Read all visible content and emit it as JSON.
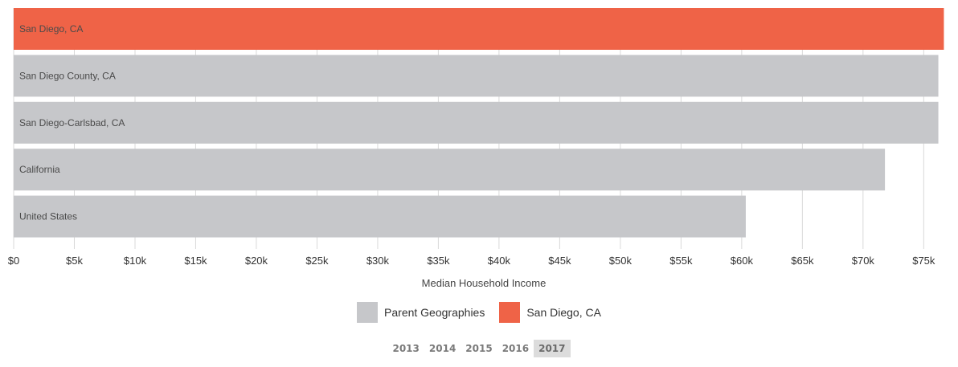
{
  "chart_data": {
    "type": "bar",
    "orientation": "horizontal",
    "categories": [
      "San Diego, CA",
      "San Diego County, CA",
      "San Diego-Carlsbad, CA",
      "California",
      "United States"
    ],
    "values": [
      76662,
      76207,
      76207,
      71805,
      60336
    ],
    "highlight": "San Diego, CA",
    "xlabel": "Median Household Income",
    "xlim": [
      0,
      76700
    ],
    "xticks": [
      0,
      5000,
      10000,
      15000,
      20000,
      25000,
      30000,
      35000,
      40000,
      45000,
      50000,
      55000,
      60000,
      65000,
      70000,
      75000
    ],
    "xtick_labels": [
      "$0",
      "$5k",
      "$10k",
      "$15k",
      "$20k",
      "$25k",
      "$30k",
      "$35k",
      "$40k",
      "$45k",
      "$50k",
      "$55k",
      "$60k",
      "$65k",
      "$70k",
      "$75k"
    ],
    "grid": true
  },
  "legend": {
    "items": [
      {
        "label": "Parent Geographies",
        "color": "#c6c7ca"
      },
      {
        "label": "San Diego, CA",
        "color": "#ef6347"
      }
    ]
  },
  "colors": {
    "highlight": "#ef6347",
    "parent": "#c6c7ca",
    "grid": "#d9d9d9"
  },
  "years": {
    "items": [
      "2013",
      "2014",
      "2015",
      "2016",
      "2017"
    ],
    "selected": "2017"
  }
}
